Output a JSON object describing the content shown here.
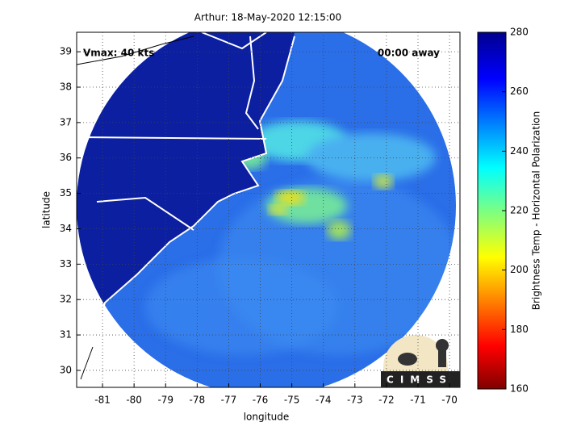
{
  "chart_data": {
    "type": "map",
    "title": "Arthur: 18-May-2020 12:15:00",
    "annotations": [
      "Vmax: 40 kts",
      "00:00 away"
    ],
    "x_label": "longitude",
    "y_label": "latitude",
    "xlim": [
      -81.82,
      -69.67
    ],
    "ylim": [
      29.52,
      39.55
    ],
    "xticks": [
      -81,
      -80,
      -79,
      -78,
      -77,
      -76,
      -75,
      -74,
      -73,
      -72,
      -71,
      -70
    ],
    "yticks": [
      30,
      31,
      32,
      33,
      34,
      35,
      36,
      37,
      38,
      39
    ],
    "grid": true,
    "colorbar": {
      "label": "Brightness Temp - Horizontal Polarization",
      "lim": [
        160,
        280
      ],
      "ticks": [
        160,
        180,
        200,
        220,
        240,
        260,
        280
      ]
    },
    "logo": "CIMSS"
  }
}
